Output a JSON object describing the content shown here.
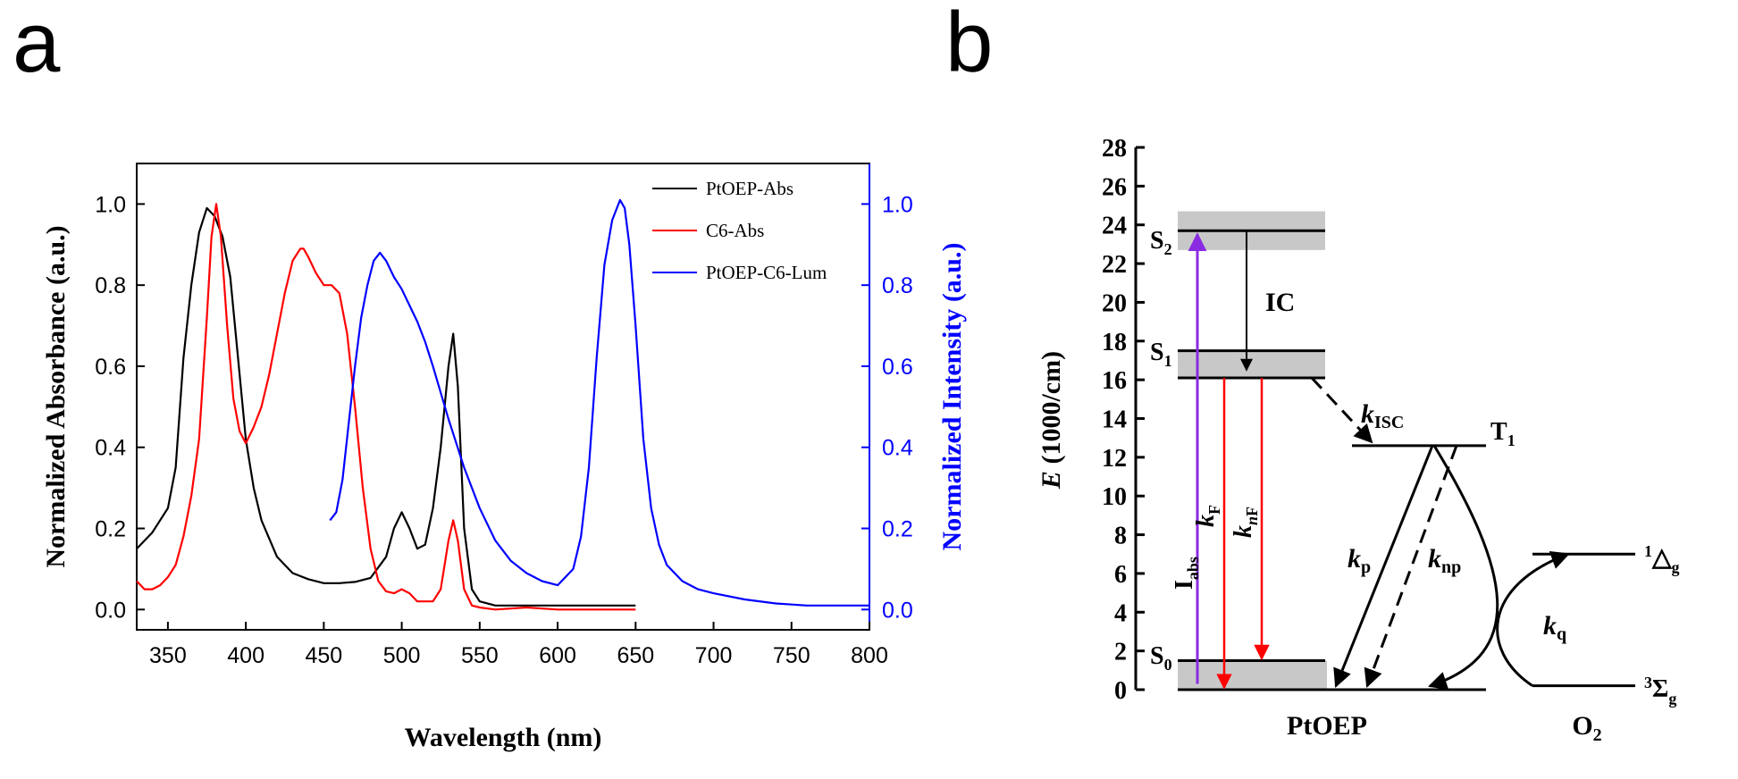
{
  "panels": {
    "a": "a",
    "b": "b"
  },
  "chart_data": [
    {
      "type": "line",
      "xlabel": "Wavelength (nm)",
      "ylabel": "Normalized Absorbance (a.u.)",
      "ylabel_right": "Normalized Intensity (a.u.)",
      "xlim": [
        330,
        800
      ],
      "ylim": [
        -0.05,
        1.1
      ],
      "ylim_right": [
        -0.05,
        1.1
      ],
      "xticks": [
        350,
        400,
        450,
        500,
        550,
        600,
        650,
        700,
        750,
        800
      ],
      "yticks": [
        "0.0",
        "0.2",
        "0.4",
        "0.6",
        "0.8",
        "1.0"
      ],
      "ytick_values": [
        0,
        0.2,
        0.4,
        0.6,
        0.8,
        1.0
      ],
      "legend_position": "top-right",
      "series": [
        {
          "name": "PtOEP-Abs",
          "color": "#000000",
          "axis": "left",
          "x": [
            330,
            340,
            350,
            355,
            360,
            365,
            370,
            375,
            380,
            385,
            390,
            395,
            400,
            405,
            410,
            420,
            430,
            440,
            450,
            460,
            470,
            480,
            490,
            495,
            500,
            505,
            510,
            515,
            520,
            525,
            530,
            533,
            536,
            540,
            545,
            550,
            560,
            580,
            600,
            620,
            650
          ],
          "y": [
            0.15,
            0.19,
            0.25,
            0.35,
            0.62,
            0.8,
            0.93,
            0.99,
            0.97,
            0.92,
            0.82,
            0.62,
            0.42,
            0.3,
            0.22,
            0.13,
            0.09,
            0.075,
            0.065,
            0.065,
            0.068,
            0.078,
            0.13,
            0.2,
            0.24,
            0.2,
            0.15,
            0.16,
            0.25,
            0.4,
            0.6,
            0.68,
            0.55,
            0.2,
            0.05,
            0.02,
            0.01,
            0.01,
            0.01,
            0.01,
            0.01
          ]
        },
        {
          "name": "C6-Abs",
          "color": "#ff0000",
          "axis": "left",
          "x": [
            330,
            335,
            340,
            345,
            350,
            355,
            360,
            365,
            370,
            375,
            378,
            381,
            384,
            388,
            392,
            396,
            400,
            405,
            410,
            415,
            420,
            425,
            430,
            435,
            437,
            440,
            445,
            450,
            455,
            460,
            465,
            470,
            475,
            480,
            485,
            490,
            495,
            500,
            505,
            510,
            520,
            525,
            530,
            533,
            536,
            540,
            545,
            550,
            560,
            580,
            600,
            620,
            650
          ],
          "y": [
            0.07,
            0.05,
            0.05,
            0.06,
            0.08,
            0.11,
            0.18,
            0.28,
            0.42,
            0.72,
            0.92,
            1.0,
            0.92,
            0.7,
            0.52,
            0.44,
            0.41,
            0.45,
            0.5,
            0.58,
            0.68,
            0.78,
            0.86,
            0.89,
            0.89,
            0.87,
            0.83,
            0.8,
            0.8,
            0.78,
            0.68,
            0.5,
            0.3,
            0.15,
            0.07,
            0.045,
            0.04,
            0.05,
            0.04,
            0.02,
            0.02,
            0.05,
            0.17,
            0.22,
            0.17,
            0.05,
            0.01,
            0.005,
            0.0,
            0.005,
            0.0,
            0.0,
            0.0
          ]
        },
        {
          "name": "PtOEP-C6-Lum",
          "color": "#0000ff",
          "axis": "right",
          "x": [
            454,
            458,
            462,
            466,
            470,
            474,
            478,
            482,
            486,
            490,
            495,
            500,
            505,
            510,
            515,
            520,
            530,
            540,
            550,
            560,
            570,
            580,
            590,
            600,
            610,
            615,
            620,
            625,
            630,
            635,
            640,
            643,
            646,
            650,
            655,
            660,
            665,
            670,
            680,
            690,
            700,
            720,
            740,
            760,
            780,
            800
          ],
          "y": [
            0.22,
            0.24,
            0.32,
            0.46,
            0.6,
            0.72,
            0.8,
            0.86,
            0.88,
            0.86,
            0.82,
            0.79,
            0.75,
            0.71,
            0.66,
            0.6,
            0.47,
            0.35,
            0.25,
            0.17,
            0.12,
            0.09,
            0.07,
            0.06,
            0.1,
            0.18,
            0.35,
            0.62,
            0.85,
            0.96,
            1.01,
            0.99,
            0.9,
            0.7,
            0.42,
            0.25,
            0.16,
            0.11,
            0.07,
            0.05,
            0.04,
            0.025,
            0.015,
            0.01,
            0.01,
            0.01
          ]
        }
      ]
    },
    {
      "type": "diagram",
      "ylabel_italic": "E",
      "ylabel_rest": " (1000/cm)",
      "ylim": [
        0,
        28
      ],
      "yticks": [
        0,
        2,
        4,
        6,
        8,
        10,
        12,
        14,
        16,
        18,
        20,
        22,
        24,
        26,
        28
      ],
      "molecule_label": "PtOEP",
      "o2_label": "O",
      "o2_sub": "2",
      "levels": [
        {
          "name": "S",
          "sub": "2",
          "energy": 23.7
        },
        {
          "name": "S",
          "sub": "1",
          "energy": 16.1
        },
        {
          "name": "S",
          "sub": "0",
          "energy": 0
        },
        {
          "name": "T",
          "sub": "1",
          "energy": 12.6
        }
      ],
      "o2_levels": [
        {
          "sup": "1",
          "sym": "△",
          "sub": "g",
          "energy": 7.0
        },
        {
          "sup": "3",
          "sym": "Σ",
          "sub": "g",
          "energy": 0.2
        }
      ],
      "labels": {
        "ic": "IC",
        "k": "k",
        "isc_sub": "ISC",
        "iabs": "I",
        "iabs_sub": "abs",
        "kf_sub": "F",
        "knf_sub_n": "n",
        "knf_sub_f": "F",
        "kp_sub": "p",
        "knp_sub": "np",
        "kq_sub": "q"
      },
      "colors": {
        "absorption": "#8a2be2",
        "fluorescence": "#ff0000",
        "band": "#c8c8c8"
      }
    }
  ]
}
